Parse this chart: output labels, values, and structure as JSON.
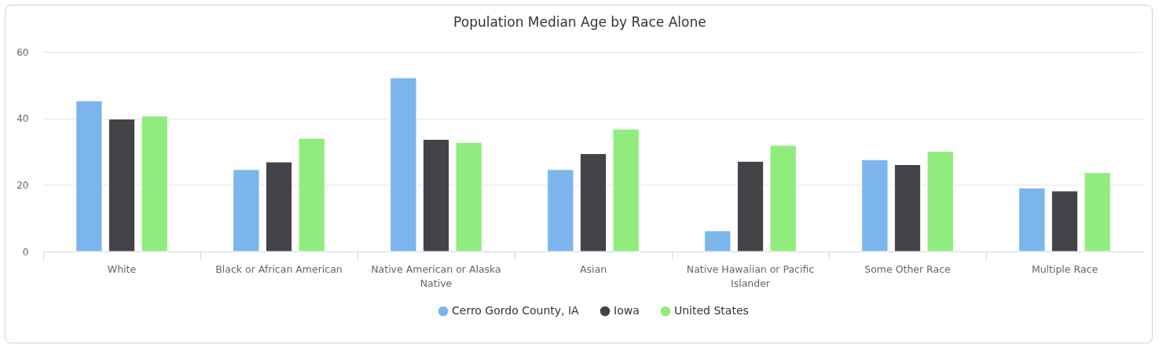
{
  "chart_data": {
    "type": "bar",
    "title": "Population Median Age by Race Alone",
    "categories": [
      "White",
      "Black or African American",
      "Native American or Alaska Native",
      "Asian",
      "Native Hawaiian or Pacific Islander",
      "Some Other Race",
      "Multiple Race"
    ],
    "series": [
      {
        "name": "Cerro Gordo County, IA",
        "color": "#7cb5ec",
        "values": [
          45.3,
          24.6,
          52.2,
          24.6,
          6.2,
          27.6,
          19.1
        ]
      },
      {
        "name": "Iowa",
        "color": "#434348",
        "values": [
          39.8,
          26.9,
          33.7,
          29.4,
          27.1,
          26.1,
          18.2
        ]
      },
      {
        "name": "United States",
        "color": "#90ed7d",
        "values": [
          40.7,
          34.0,
          32.8,
          36.8,
          31.9,
          30.1,
          23.7
        ]
      }
    ],
    "ylim": [
      0,
      60
    ],
    "yticks": [
      0,
      20,
      40,
      60
    ],
    "grid": "y",
    "legend": "bottom"
  }
}
